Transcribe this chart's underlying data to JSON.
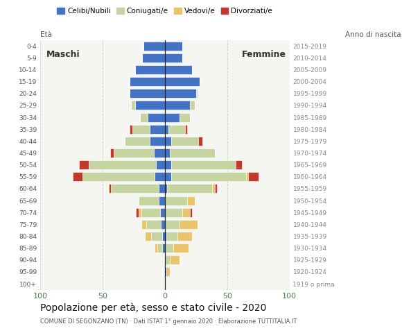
{
  "age_groups": [
    "100+",
    "95-99",
    "90-94",
    "85-89",
    "80-84",
    "75-79",
    "70-74",
    "65-69",
    "60-64",
    "55-59",
    "50-54",
    "45-49",
    "40-44",
    "35-39",
    "30-34",
    "25-29",
    "20-24",
    "15-19",
    "10-14",
    "5-9",
    "0-4"
  ],
  "birth_years": [
    "1919 o prima",
    "1920-1924",
    "1925-1929",
    "1930-1934",
    "1935-1939",
    "1940-1944",
    "1945-1949",
    "1950-1954",
    "1955-1959",
    "1960-1964",
    "1965-1969",
    "1970-1974",
    "1975-1979",
    "1980-1984",
    "1985-1989",
    "1990-1994",
    "1995-1999",
    "2000-2004",
    "2005-2009",
    "2010-2014",
    "2015-2019"
  ],
  "male_celibi": [
    0,
    0,
    0,
    2,
    2,
    3,
    4,
    5,
    5,
    8,
    7,
    9,
    12,
    12,
    14,
    24,
    28,
    28,
    24,
    18,
    17
  ],
  "male_coniugati": [
    0,
    0,
    0,
    4,
    9,
    12,
    15,
    16,
    38,
    58,
    54,
    32,
    20,
    14,
    6,
    3,
    0,
    0,
    0,
    0,
    0
  ],
  "male_vedovi": [
    0,
    0,
    0,
    2,
    5,
    4,
    2,
    0,
    0,
    0,
    0,
    0,
    0,
    0,
    0,
    0,
    0,
    0,
    0,
    0,
    0
  ],
  "male_divorziati": [
    0,
    0,
    0,
    0,
    0,
    0,
    2,
    0,
    2,
    8,
    8,
    3,
    0,
    2,
    0,
    0,
    0,
    0,
    0,
    0,
    0
  ],
  "female_nubili": [
    0,
    1,
    0,
    0,
    1,
    0,
    0,
    0,
    2,
    5,
    5,
    4,
    5,
    3,
    12,
    20,
    25,
    28,
    22,
    14,
    14
  ],
  "female_coniugate": [
    0,
    0,
    4,
    7,
    9,
    12,
    14,
    18,
    36,
    60,
    52,
    36,
    22,
    13,
    8,
    4,
    1,
    0,
    0,
    0,
    0
  ],
  "female_vedove": [
    0,
    3,
    8,
    12,
    12,
    14,
    6,
    6,
    2,
    2,
    0,
    0,
    0,
    0,
    0,
    0,
    0,
    0,
    0,
    0,
    0
  ],
  "female_divorziate": [
    0,
    0,
    0,
    0,
    0,
    0,
    2,
    0,
    2,
    8,
    5,
    0,
    3,
    2,
    0,
    0,
    0,
    0,
    0,
    0,
    0
  ],
  "color_celibi": "#4472c4",
  "color_coniugati": "#c5d4a0",
  "color_vedovi": "#e9c46a",
  "color_divorziati": "#c0392b",
  "legend_labels": [
    "Celibi/Nubili",
    "Coniugati/e",
    "Vedovi/e",
    "Divorziati/e"
  ],
  "title": "Popolazione per età, sesso e stato civile - 2020",
  "subtitle": "COMUNE DI SEGONZANO (TN) · Dati ISTAT 1° gennaio 2020 · Elaborazione TUTTITALIA.IT",
  "xlabel_ticks": [
    "100",
    "50",
    "0",
    "50",
    "100"
  ],
  "xlabel_vals": [
    -100,
    -50,
    0,
    50,
    100
  ],
  "xlim": [
    -100,
    100
  ],
  "label_maschi": "Maschi",
  "label_femmine": "Femmine",
  "eta_label": "Età",
  "nascita_label": "Anno di nascita",
  "grid_color": "#cccccc",
  "bg_color": "#f5f5f2",
  "tick_color": "#4e7c4e"
}
